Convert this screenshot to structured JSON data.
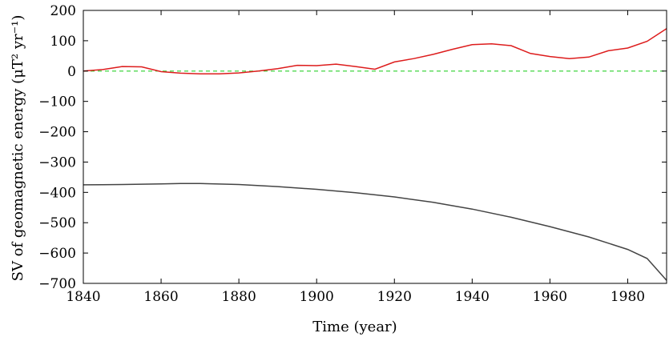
{
  "chart_data": {
    "type": "line",
    "xlabel": "Time (year)",
    "ylabel": "SV of geomagnetic energy (μT² yr⁻¹)",
    "xlim": [
      1840,
      1990
    ],
    "ylim": [
      -700,
      200
    ],
    "xticks": [
      1840,
      1860,
      1880,
      1900,
      1920,
      1940,
      1960,
      1980
    ],
    "yticks": [
      200,
      100,
      0,
      -100,
      -200,
      -300,
      -400,
      -500,
      -600,
      -700
    ],
    "xtick_labels": [
      "1840",
      "1860",
      "1880",
      "1900",
      "1920",
      "1940",
      "1960",
      "1980"
    ],
    "ytick_labels": [
      "200",
      "100",
      "0",
      "−100",
      "−200",
      "−300",
      "−400",
      "−500",
      "−600",
      "−700"
    ],
    "grid": false,
    "series": [
      {
        "color": "#dd1c1c",
        "style": "solid",
        "x": [
          1840,
          1845,
          1850,
          1855,
          1860,
          1865,
          1870,
          1875,
          1880,
          1885,
          1890,
          1895,
          1900,
          1905,
          1910,
          1915,
          1920,
          1925,
          1930,
          1935,
          1940,
          1945,
          1950,
          1955,
          1960,
          1965,
          1970,
          1975,
          1980,
          1985,
          1990
        ],
        "y": [
          0,
          5,
          15,
          14,
          -2,
          -7,
          -9,
          -9,
          -6,
          0,
          8,
          19,
          18,
          23,
          15,
          6,
          30,
          41,
          55,
          72,
          87,
          90,
          84,
          58,
          48,
          41,
          46,
          67,
          76,
          98,
          140
        ]
      },
      {
        "color": "#444444",
        "style": "solid",
        "x": [
          1840,
          1850,
          1860,
          1865,
          1870,
          1880,
          1890,
          1900,
          1910,
          1920,
          1930,
          1940,
          1950,
          1960,
          1970,
          1980,
          1985,
          1990
        ],
        "y": [
          -375,
          -374,
          -372,
          -371,
          -371,
          -374,
          -381,
          -390,
          -401,
          -415,
          -433,
          -455,
          -482,
          -513,
          -547,
          -588,
          -618,
          -690
        ]
      },
      {
        "color": "#2bd12b",
        "style": "dashed",
        "x": [
          1840,
          1990
        ],
        "y": [
          0,
          0
        ]
      }
    ]
  }
}
